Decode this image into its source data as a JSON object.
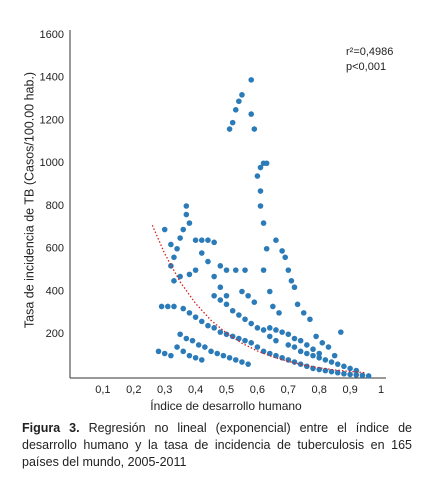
{
  "chart_data": {
    "type": "scatter",
    "xlabel": "Índice de desarrollo humano",
    "ylabel": "Tasa de incidencia de TB (Casos/100.00 hab.)",
    "annotations": [
      "r²=0,4986",
      "p<0,001"
    ],
    "xlim": [
      0,
      1
    ],
    "ylim": [
      0,
      1600
    ],
    "xticks": [
      {
        "value": 0.1,
        "label": "0,1"
      },
      {
        "value": 0.2,
        "label": "0,2"
      },
      {
        "value": 0.3,
        "label": "0,3"
      },
      {
        "value": 0.4,
        "label": "0,4"
      },
      {
        "value": 0.5,
        "label": "0,5"
      },
      {
        "value": 0.6,
        "label": "0,6"
      },
      {
        "value": 0.7,
        "label": "0,7"
      },
      {
        "value": 0.8,
        "label": "0,8"
      },
      {
        "value": 0.9,
        "label": "0,9"
      },
      1
    ],
    "yticks": [
      200,
      400,
      600,
      800,
      1000,
      1200,
      1400,
      1600
    ],
    "grid": false,
    "series": [
      {
        "type": "scatter",
        "color": "#2b7bb9",
        "x": [
          0.58,
          0.55,
          0.54,
          0.53,
          0.52,
          0.51,
          0.58,
          0.59,
          0.62,
          0.61,
          0.63,
          0.6,
          0.61,
          0.61,
          0.62,
          0.63,
          0.62,
          0.64,
          0.37,
          0.37,
          0.38,
          0.36,
          0.35,
          0.34,
          0.33,
          0.32,
          0.3,
          0.32,
          0.4,
          0.42,
          0.44,
          0.46,
          0.33,
          0.35,
          0.38,
          0.4,
          0.48,
          0.5,
          0.53,
          0.56,
          0.42,
          0.44,
          0.46,
          0.48,
          0.5,
          0.66,
          0.68,
          0.69,
          0.7,
          0.71,
          0.72,
          0.29,
          0.31,
          0.33,
          0.36,
          0.38,
          0.4,
          0.42,
          0.44,
          0.46,
          0.48,
          0.5,
          0.52,
          0.54,
          0.56,
          0.58,
          0.34,
          0.36,
          0.38,
          0.4,
          0.42,
          0.35,
          0.37,
          0.39,
          0.41,
          0.43,
          0.45,
          0.47,
          0.49,
          0.51,
          0.53,
          0.55,
          0.57,
          0.46,
          0.48,
          0.5,
          0.52,
          0.54,
          0.56,
          0.58,
          0.6,
          0.62,
          0.64,
          0.66,
          0.68,
          0.7,
          0.72,
          0.74,
          0.76,
          0.78,
          0.8,
          0.6,
          0.62,
          0.64,
          0.66,
          0.68,
          0.7,
          0.72,
          0.74,
          0.76,
          0.78,
          0.8,
          0.82,
          0.84,
          0.86,
          0.88,
          0.9,
          0.92,
          0.94,
          0.96,
          0.7,
          0.72,
          0.74,
          0.76,
          0.78,
          0.8,
          0.82,
          0.84,
          0.86,
          0.88,
          0.9,
          0.92,
          0.87,
          0.73,
          0.75,
          0.77,
          0.65,
          0.67,
          0.55,
          0.57,
          0.59,
          0.28,
          0.3,
          0.32,
          0.64,
          0.66,
          0.85,
          0.83,
          0.81,
          0.79
        ],
        "values": [
          1390,
          1320,
          1290,
          1250,
          1190,
          1160,
          1230,
          1160,
          1000,
          980,
          1000,
          940,
          870,
          800,
          720,
          600,
          500,
          400,
          800,
          760,
          720,
          690,
          650,
          600,
          560,
          520,
          690,
          620,
          640,
          640,
          640,
          630,
          450,
          470,
          480,
          500,
          520,
          500,
          500,
          500,
          580,
          540,
          470,
          420,
          380,
          640,
          590,
          560,
          500,
          450,
          420,
          330,
          330,
          330,
          320,
          300,
          280,
          260,
          240,
          230,
          210,
          200,
          190,
          180,
          170,
          160,
          140,
          120,
          100,
          90,
          80,
          200,
          180,
          170,
          150,
          140,
          120,
          110,
          100,
          90,
          80,
          70,
          60,
          380,
          360,
          340,
          310,
          290,
          270,
          250,
          230,
          220,
          230,
          220,
          210,
          200,
          180,
          170,
          150,
          130,
          110,
          140,
          120,
          110,
          100,
          90,
          80,
          70,
          60,
          50,
          40,
          35,
          30,
          25,
          20,
          15,
          12,
          10,
          8,
          5,
          150,
          140,
          120,
          110,
          100,
          90,
          80,
          70,
          60,
          50,
          40,
          30,
          210,
          340,
          300,
          270,
          330,
          300,
          400,
          380,
          350,
          120,
          110,
          100,
          190,
          170,
          100,
          140,
          160,
          190
        ]
      },
      {
        "type": "line",
        "color": "#d62020",
        "dash": true,
        "x": [
          0.26,
          0.3,
          0.35,
          0.4,
          0.45,
          0.5,
          0.55,
          0.6,
          0.65,
          0.7,
          0.75,
          0.8,
          0.85,
          0.9,
          0.95
        ],
        "values": [
          710,
          577,
          445,
          344,
          265,
          205,
          158,
          122,
          94,
          73,
          56,
          43,
          33,
          26,
          20
        ]
      }
    ]
  },
  "caption": {
    "label": "Figura 3.",
    "text": "Regresión no lineal (exponencial) entre el índice de desarrollo humano y la tasa de incidencia de tuberculosis en 165 países del mundo, 2005-2011"
  }
}
